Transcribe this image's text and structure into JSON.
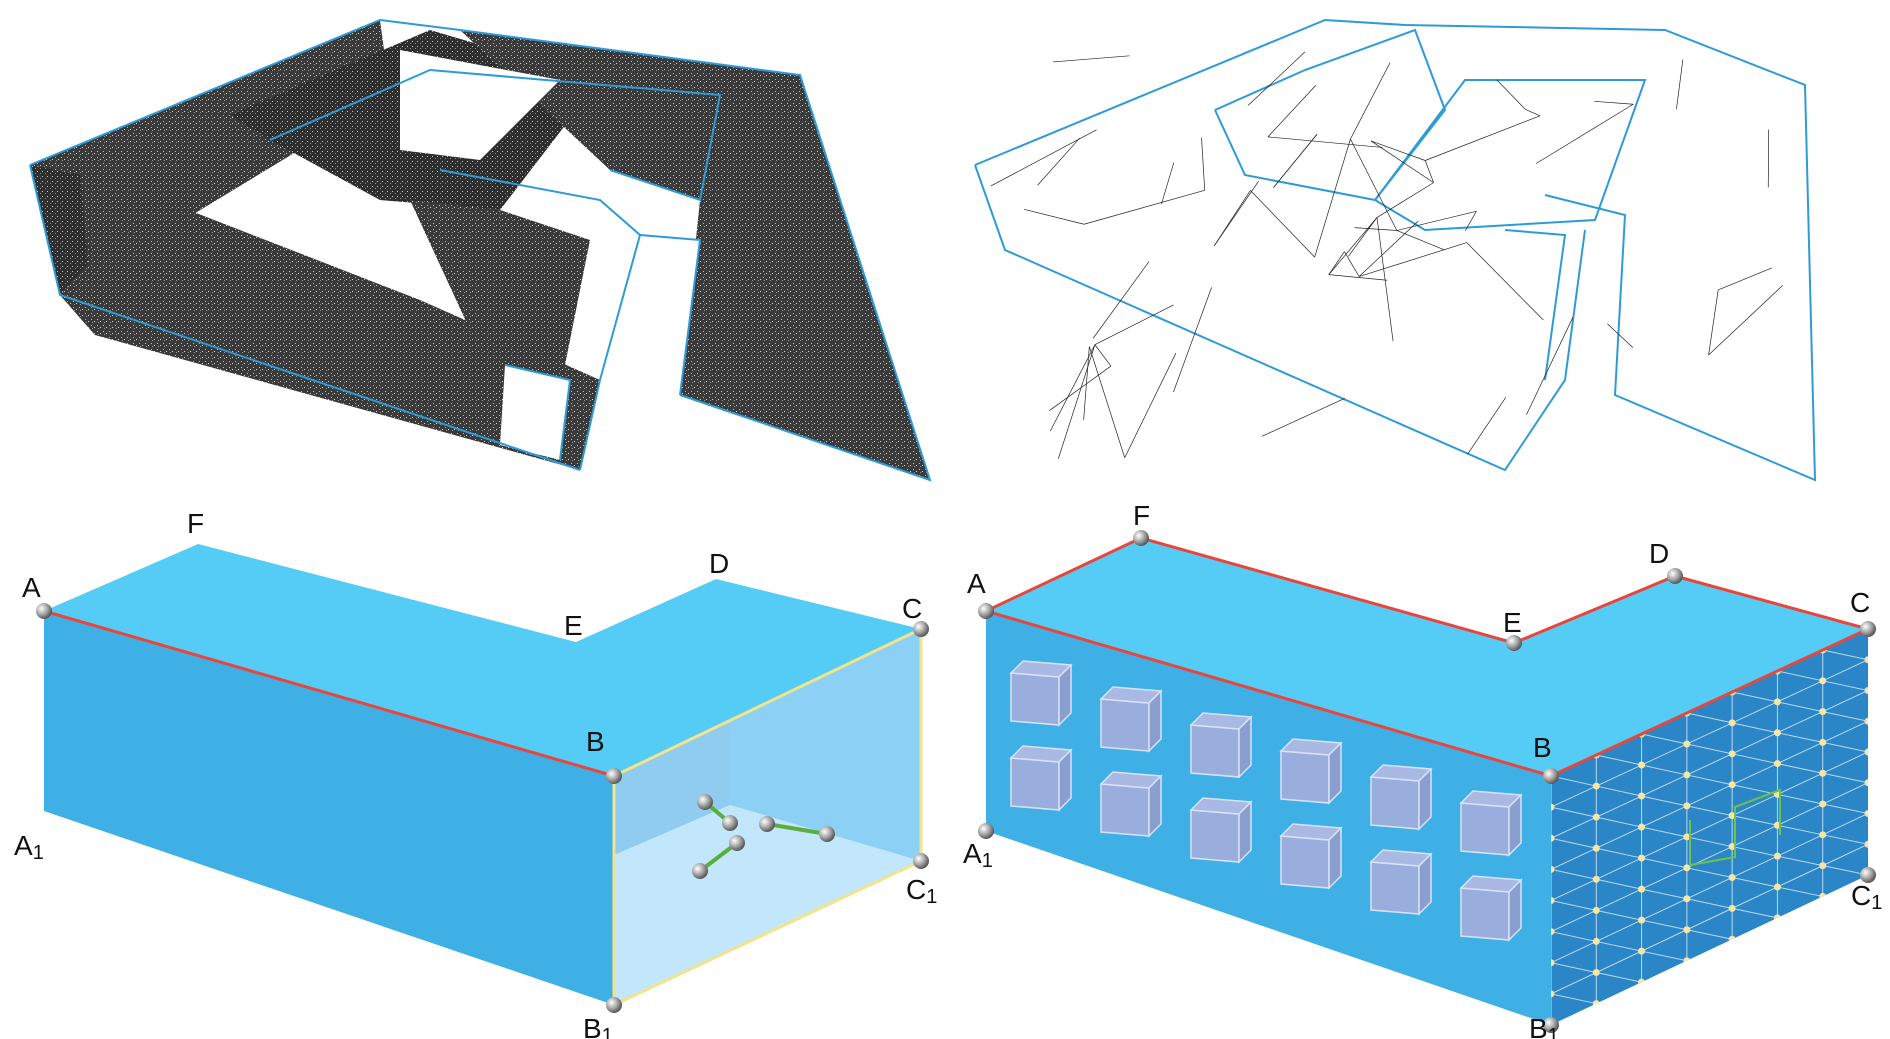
{
  "figure": {
    "panels": [
      {
        "id": "point-cloud",
        "kind": "dense point cloud of building"
      },
      {
        "id": "triangle-mesh",
        "kind": "triangulated wireframe mesh"
      },
      {
        "id": "model-transparent",
        "kind": "simplified L-shaped building with interior features"
      },
      {
        "id": "model-facade",
        "kind": "L-shaped building with window boxes and meshed facade"
      }
    ],
    "vertex_labels": {
      "A": "A",
      "F": "F",
      "D": "D",
      "E": "E",
      "C": "C",
      "B": "B",
      "A1_main": "A",
      "A1_sub": "1",
      "B1_main": "B",
      "B1_sub": "1",
      "C1_main": "C",
      "C1_sub": "1"
    },
    "colors": {
      "outline_blue": "#2e9bd6",
      "roof": "#55ccf5",
      "facade": "#3eb0e6",
      "side_face_glass": "#a9dcf7",
      "facade_dark": "#2b86c8",
      "ridge_red": "#e8463c",
      "edge_yellow": "#f3e38a",
      "window_box": "#9aaedd",
      "link_green": "#5aae3c",
      "vertex_gray": "#9a9a9a",
      "point_cloud": "#2f2f2f"
    }
  }
}
